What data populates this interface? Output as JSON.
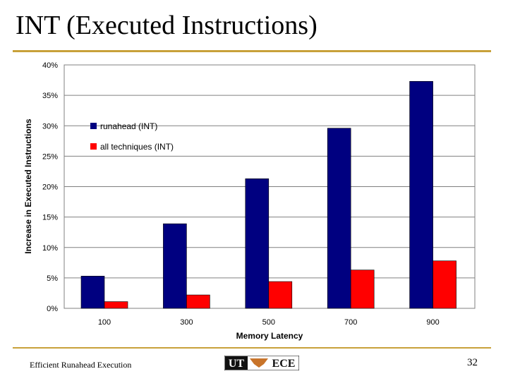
{
  "slide": {
    "title": "INT (Executed Instructions)",
    "footer_text": "Efficient Runahead Execution",
    "page_number": "32",
    "logo": {
      "left": "UT",
      "right": "ECE"
    }
  },
  "chart_data": {
    "type": "bar",
    "categories": [
      "100",
      "300",
      "500",
      "700",
      "900"
    ],
    "series": [
      {
        "name": "runahead (INT)",
        "color": "#000080",
        "values": [
          5.3,
          13.9,
          21.3,
          29.6,
          37.3
        ]
      },
      {
        "name": "all techniques (INT)",
        "color": "#ff0000",
        "values": [
          1.1,
          2.2,
          4.4,
          6.3,
          7.8
        ]
      }
    ],
    "xlabel": "Memory Latency",
    "ylabel": "Increase in Executed Instructions",
    "ylim": [
      0,
      40
    ],
    "yticks": [
      "0%",
      "5%",
      "10%",
      "15%",
      "20%",
      "25%",
      "30%",
      "35%",
      "40%"
    ],
    "grid": true,
    "legend_position": "upper-left",
    "plot_background": "#ffffff",
    "gridline_color": "#808080"
  }
}
